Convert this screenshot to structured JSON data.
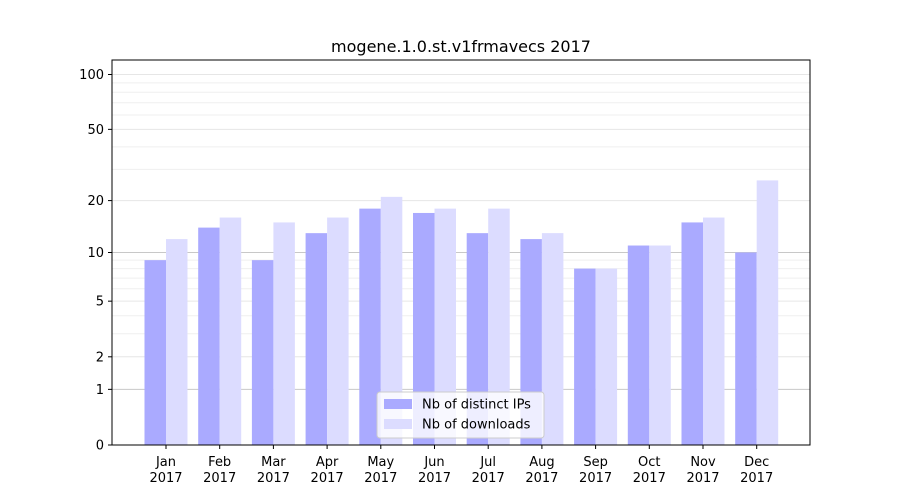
{
  "chart_data": {
    "type": "bar",
    "title": "mogene.1.0.st.v1frmavecs 2017",
    "xlabel": "",
    "ylabel": "",
    "y_scale": "log(1+y)",
    "y_ticks": [
      0,
      1,
      2,
      5,
      10,
      20,
      50,
      100
    ],
    "ylim": [
      0,
      120
    ],
    "categories": [
      [
        "Jan",
        "2017"
      ],
      [
        "Feb",
        "2017"
      ],
      [
        "Mar",
        "2017"
      ],
      [
        "Apr",
        "2017"
      ],
      [
        "May",
        "2017"
      ],
      [
        "Jun",
        "2017"
      ],
      [
        "Jul",
        "2017"
      ],
      [
        "Aug",
        "2017"
      ],
      [
        "Sep",
        "2017"
      ],
      [
        "Oct",
        "2017"
      ],
      [
        "Nov",
        "2017"
      ],
      [
        "Dec",
        "2017"
      ]
    ],
    "series": [
      {
        "name": "Nb of distinct IPs",
        "color": "#aaaaff",
        "values": [
          9,
          14,
          9,
          13,
          18,
          17,
          13,
          12,
          8,
          11,
          15,
          10
        ]
      },
      {
        "name": "Nb of downloads",
        "color": "#dcdcff",
        "values": [
          12,
          16,
          15,
          16,
          21,
          18,
          18,
          13,
          8,
          11,
          16,
          26
        ]
      }
    ],
    "grid": true,
    "legend_position": "bottom-center"
  }
}
